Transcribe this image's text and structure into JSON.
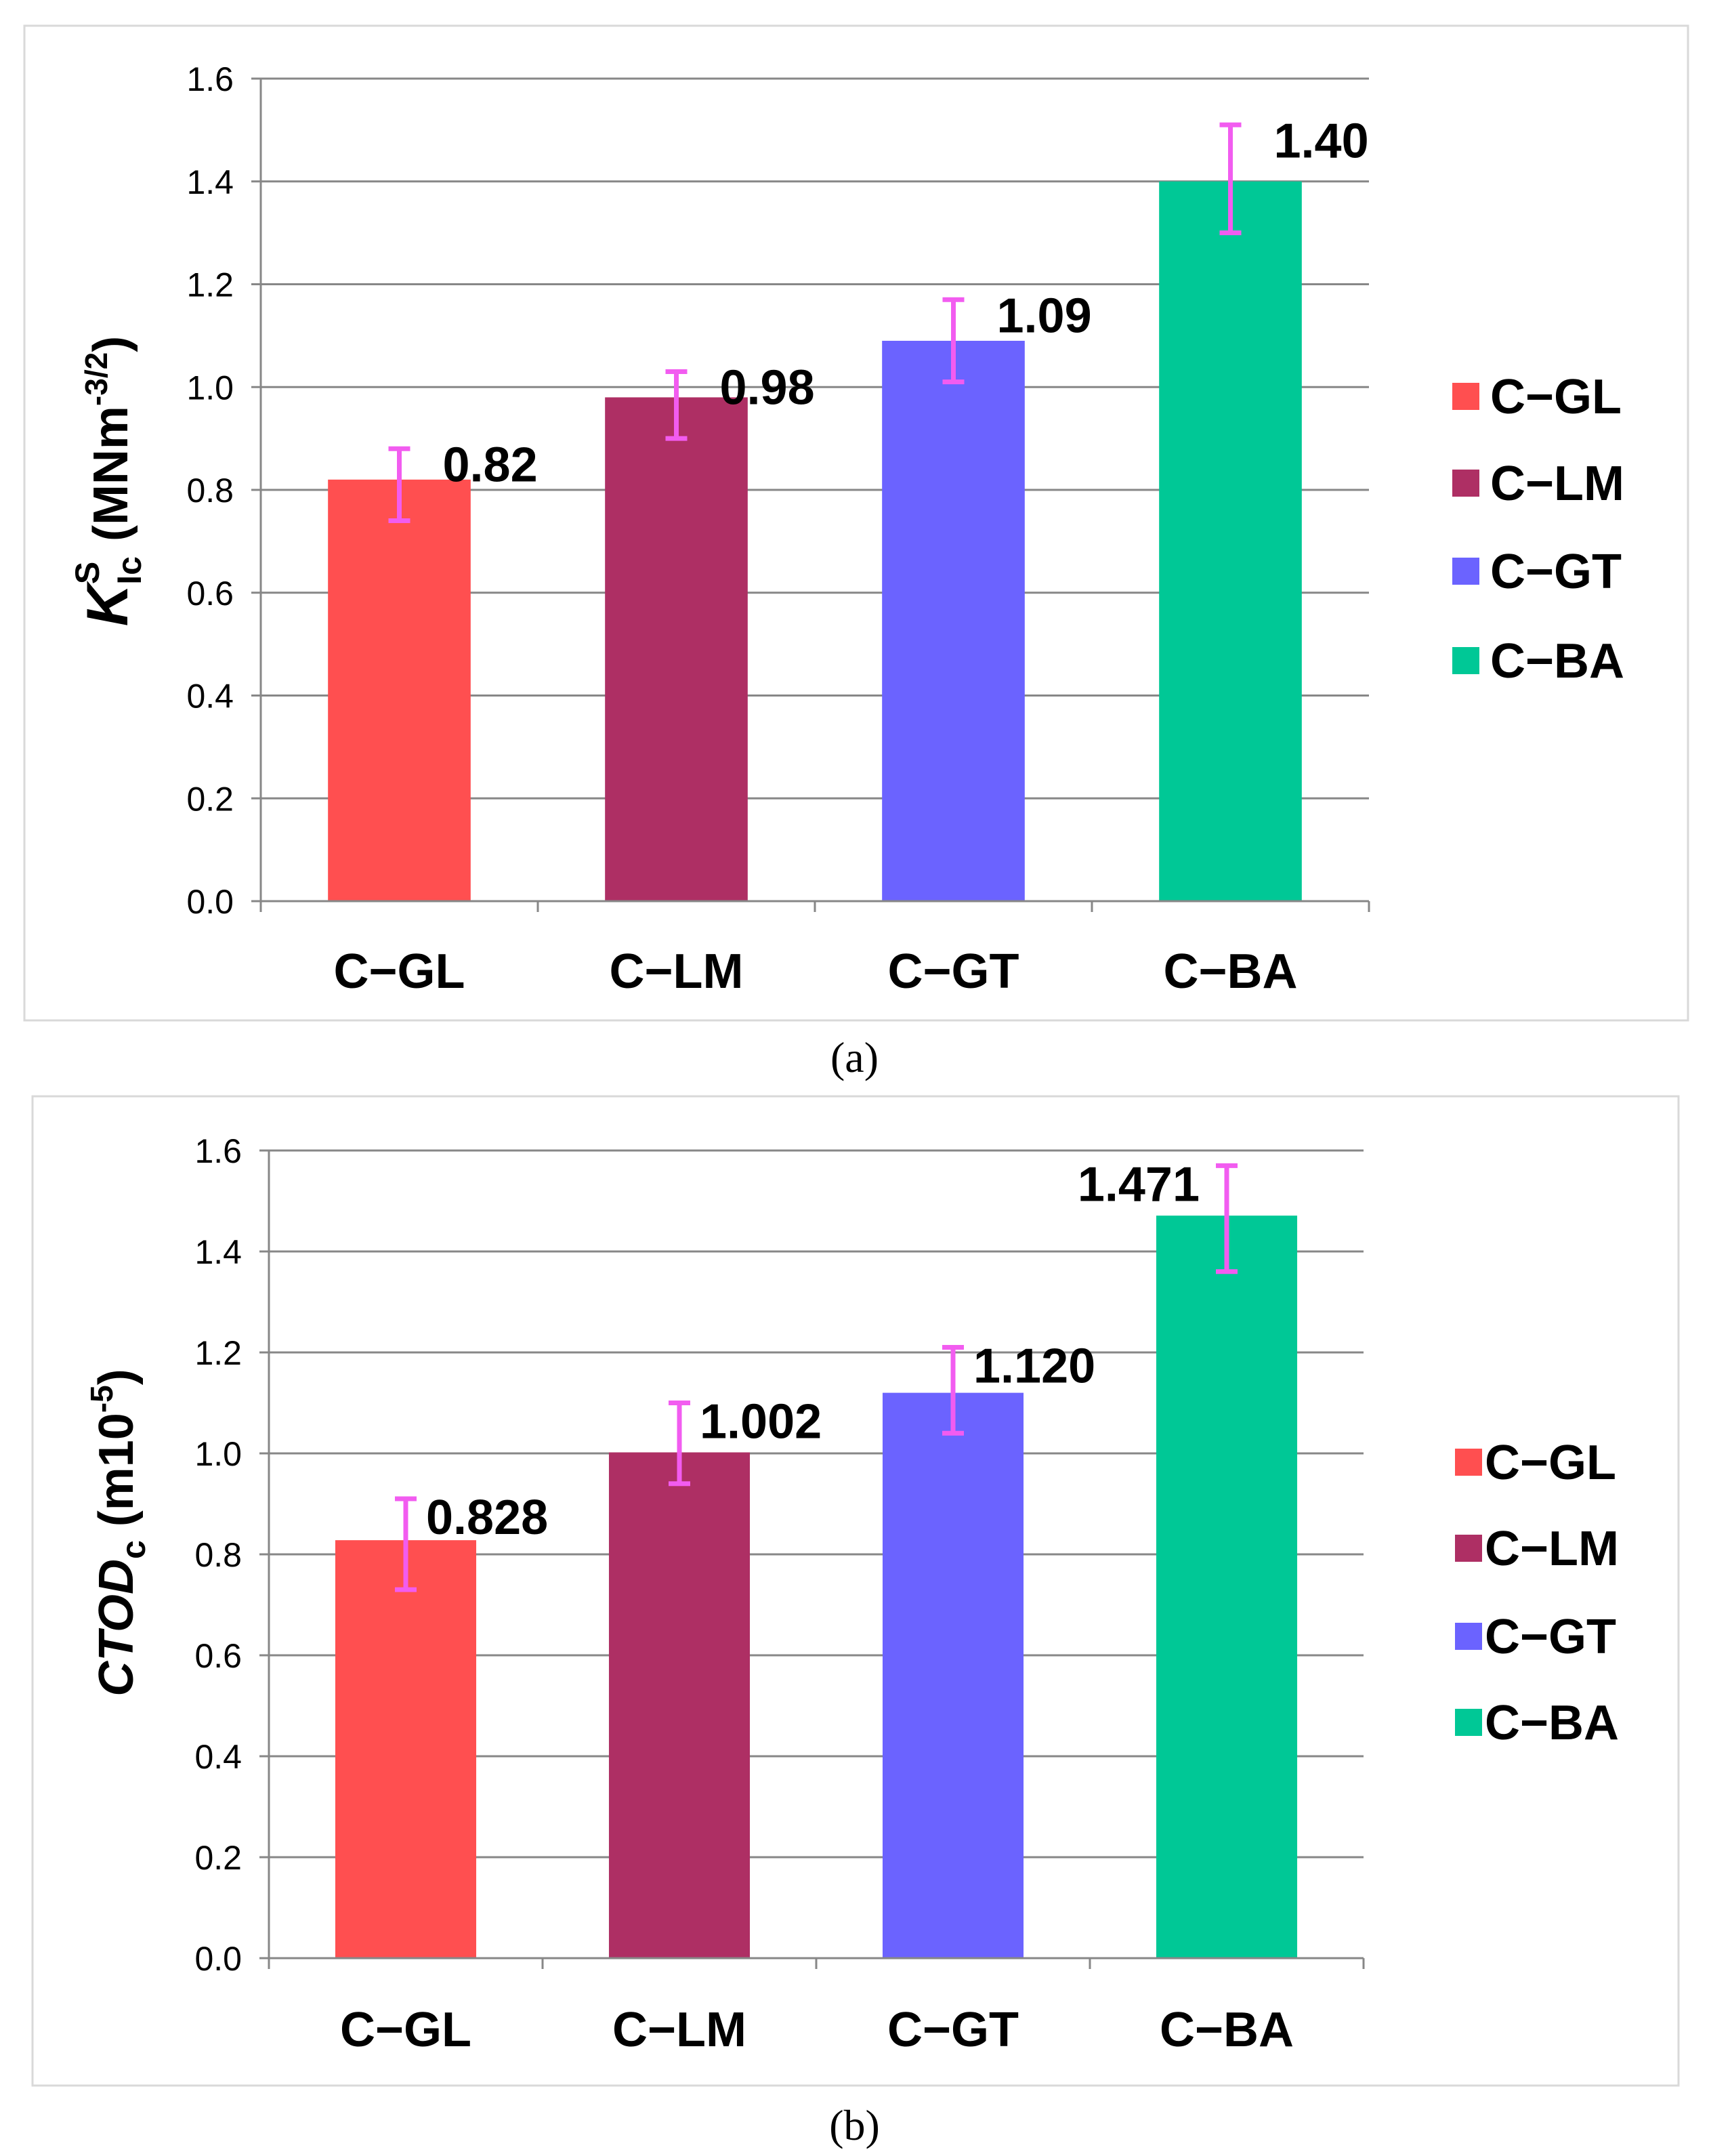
{
  "chart_data": [
    {
      "type": "bar",
      "caption": "(a)",
      "categories": [
        "C−GL",
        "C−LM",
        "C−GT",
        "C−BA"
      ],
      "values": [
        0.82,
        0.98,
        1.09,
        1.4
      ],
      "value_labels": [
        "0.82",
        "0.98",
        "1.09",
        "1.40"
      ],
      "error_low": [
        0.74,
        0.9,
        1.01,
        1.3
      ],
      "error_high": [
        0.88,
        1.03,
        1.17,
        1.51
      ],
      "colors": [
        "#FF4F50",
        "#AE2F64",
        "#6B63FF",
        "#00C896"
      ],
      "error_color": "#F25CF0",
      "ylabel_symbol": "K",
      "ylabel_sup": "S",
      "ylabel_sub": "Ic",
      "ylabel_unit_pre": "(MNm",
      "ylabel_unit_sup": "-3/2",
      "ylabel_unit_post": ")",
      "ylim": [
        0,
        1.6
      ],
      "yticks": [
        "0.0",
        "0.2",
        "0.4",
        "0.6",
        "0.8",
        "1.0",
        "1.2",
        "1.4",
        "1.6"
      ],
      "grid": true,
      "legend": [
        "C−GL",
        "C−LM",
        "C−GT",
        "C−BA"
      ],
      "legend_position": "right"
    },
    {
      "type": "bar",
      "caption": "(b)",
      "categories": [
        "C−GL",
        "C−LM",
        "C−GT",
        "C−BA"
      ],
      "values": [
        0.828,
        1.002,
        1.12,
        1.471
      ],
      "value_labels": [
        "0.828",
        "1.002",
        "1.120",
        "1.471"
      ],
      "error_low": [
        0.73,
        0.94,
        1.04,
        1.36
      ],
      "error_high": [
        0.91,
        1.1,
        1.21,
        1.57
      ],
      "colors": [
        "#FF4F50",
        "#AE2F64",
        "#6B63FF",
        "#00C896"
      ],
      "error_color": "#F25CF0",
      "ylabel_symbol": "CTOD",
      "ylabel_sub": "c",
      "ylabel_unit_pre": "(m10",
      "ylabel_unit_sup": "-5",
      "ylabel_unit_post": ")",
      "ylim": [
        0,
        1.6
      ],
      "yticks": [
        "0.0",
        "0.2",
        "0.4",
        "0.6",
        "0.8",
        "1.0",
        "1.2",
        "1.4",
        "1.6"
      ],
      "grid": true,
      "legend": [
        "C−GL",
        "C−LM",
        "C−GT",
        "C−BA"
      ],
      "legend_position": "right"
    }
  ]
}
